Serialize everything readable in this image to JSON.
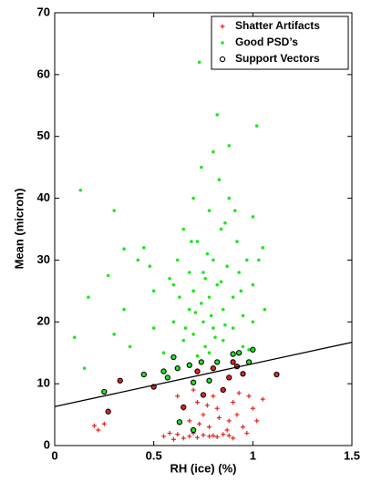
{
  "chart_data": {
    "type": "scatter",
    "xlabel": "RH (ice) (%)",
    "ylabel": "Mean (micron)",
    "xlim": [
      0,
      1.5
    ],
    "ylim": [
      0,
      70
    ],
    "xticks": [
      0,
      0.5,
      1,
      1.5
    ],
    "yticks": [
      0,
      10,
      20,
      30,
      40,
      50,
      60,
      70
    ],
    "grid": false,
    "legend": "upper right",
    "series": [
      {
        "name": "Shatter Artifacts",
        "color": "#e8241c",
        "marker": "plus",
        "x": [
          0.2,
          0.22,
          0.25,
          0.55,
          0.58,
          0.6,
          0.62,
          0.65,
          0.68,
          0.7,
          0.72,
          0.75,
          0.78,
          0.8,
          0.82,
          0.85,
          0.88,
          0.9,
          0.62,
          0.65,
          0.68,
          0.7,
          0.72,
          0.75,
          0.78,
          0.8,
          0.82,
          0.85,
          0.88,
          0.9,
          0.92,
          0.95,
          0.98,
          1.0,
          1.02,
          1.05,
          0.87,
          0.93,
          0.77,
          0.73,
          0.83,
          0.97
        ],
        "y": [
          3.2,
          2.5,
          3.5,
          1.5,
          2,
          1,
          1.8,
          1.2,
          1.5,
          2,
          1.3,
          1.7,
          1.5,
          1.6,
          1.4,
          1.8,
          1.6,
          1.2,
          8,
          6,
          4,
          9,
          7,
          5,
          3,
          8,
          6,
          9,
          4,
          7,
          5,
          3,
          8,
          6,
          4,
          7.5,
          2.5,
          8.5,
          6.5,
          3.5,
          4.5,
          2
        ]
      },
      {
        "name": "Good PSD’s",
        "color": "#1ee81e",
        "marker": "dot",
        "x": [
          0.13,
          0.1,
          0.17,
          0.15,
          0.3,
          0.27,
          0.3,
          0.35,
          0.35,
          0.38,
          0.42,
          0.45,
          0.48,
          0.5,
          0.5,
          0.55,
          0.58,
          0.6,
          0.62,
          0.65,
          0.65,
          0.68,
          0.7,
          0.7,
          0.7,
          0.72,
          0.73,
          0.74,
          0.75,
          0.75,
          0.76,
          0.78,
          0.78,
          0.8,
          0.8,
          0.8,
          0.82,
          0.82,
          0.84,
          0.85,
          0.85,
          0.87,
          0.88,
          0.88,
          0.9,
          0.9,
          0.92,
          0.93,
          0.95,
          0.95,
          1.0,
          1.02,
          1.0,
          1.03,
          1.05,
          1.0,
          0.98,
          0.68,
          0.72,
          0.77,
          0.83,
          0.86,
          0.79,
          0.74,
          0.81,
          0.66,
          0.63,
          0.91,
          0.94,
          0.97,
          0.69,
          0.76,
          0.84,
          0.71,
          0.86,
          0.78,
          0.6,
          1.06
        ],
        "y": [
          41.3,
          17.5,
          24,
          12.5,
          38,
          27.5,
          18,
          31.8,
          22,
          16,
          30,
          32,
          29,
          25,
          19,
          15,
          27,
          20,
          30,
          35,
          17,
          22,
          40,
          25,
          18,
          33,
          62,
          45,
          28,
          20,
          16,
          38,
          24,
          47.5,
          30,
          19,
          53.5,
          26,
          35,
          22,
          17,
          29,
          48.5,
          40,
          24,
          19,
          33,
          28,
          21,
          16,
          37,
          51.7,
          26,
          30,
          32,
          20,
          15.5,
          28,
          14.5,
          31,
          43,
          36,
          21,
          23,
          17.5,
          19,
          24,
          38,
          25,
          30,
          33,
          27,
          26.5,
          21.5,
          19.5,
          15,
          26,
          22
        ]
      },
      {
        "name": "Support Vectors",
        "color": "#000000",
        "marker": "circle",
        "x": [
          0.25,
          0.27,
          0.33,
          0.45,
          0.5,
          0.55,
          0.57,
          0.6,
          0.62,
          0.63,
          0.65,
          0.68,
          0.7,
          0.72,
          0.74,
          0.75,
          0.78,
          0.8,
          0.82,
          0.85,
          0.88,
          0.9,
          0.92,
          0.93,
          0.95,
          0.98,
          1.0,
          1.12,
          0.7,
          0.9
        ],
        "y": [
          8.7,
          5.5,
          10.5,
          11.5,
          9.5,
          12,
          11,
          14.3,
          12.5,
          3.8,
          6.2,
          13,
          10.2,
          12,
          13.5,
          8.2,
          10.5,
          12.5,
          13.5,
          9,
          11,
          14.8,
          12.8,
          15,
          11.6,
          13.5,
          15.5,
          11.5,
          2.5,
          13.5
        ],
        "point_colors": [
          "#1ee81e",
          "#e8241c",
          "#e8241c",
          "#1ee81e",
          "#e8241c",
          "#1ee81e",
          "#1ee81e",
          "#1ee81e",
          "#1ee81e",
          "#1ee81e",
          "#e8241c",
          "#1ee81e",
          "#1ee81e",
          "#e8241c",
          "#1ee81e",
          "#e8241c",
          "#1ee81e",
          "#e8241c",
          "#1ee81e",
          "#e8241c",
          "#e8241c",
          "#1ee81e",
          "#e8241c",
          "#1ee81e",
          "#e8241c",
          "#1ee81e",
          "#1ee81e",
          "#e8241c",
          "#1ee81e",
          "#e8241c"
        ]
      }
    ],
    "line": {
      "color": "#000000",
      "x": [
        0,
        1.5
      ],
      "y": [
        6.3,
        16.7
      ]
    }
  }
}
